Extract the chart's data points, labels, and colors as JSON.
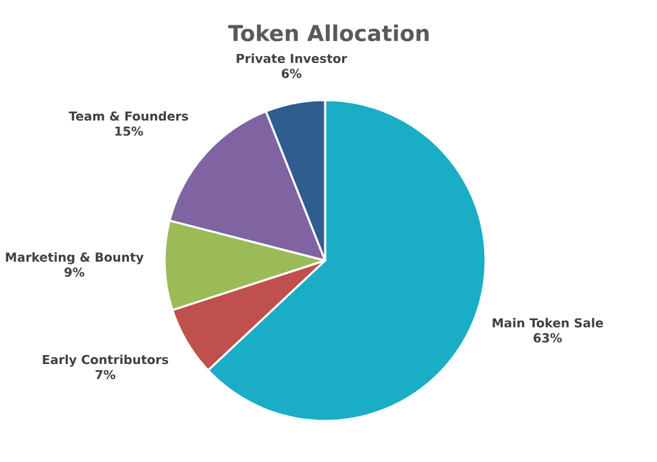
{
  "chart_data": {
    "type": "pie",
    "title": "Token Allocation",
    "categories": [
      "Main Token Sale",
      "Early Contributors",
      "Marketing & Bounty",
      "Team & Founders",
      "Private Investor"
    ],
    "values": [
      63,
      7,
      9,
      15,
      6
    ],
    "value_labels": [
      "63%",
      "7%",
      "9%",
      "15%",
      "6%"
    ],
    "colors": [
      "#1aadc6",
      "#c0504d",
      "#9bbb59",
      "#8064a2",
      "#2e5d8e"
    ]
  }
}
